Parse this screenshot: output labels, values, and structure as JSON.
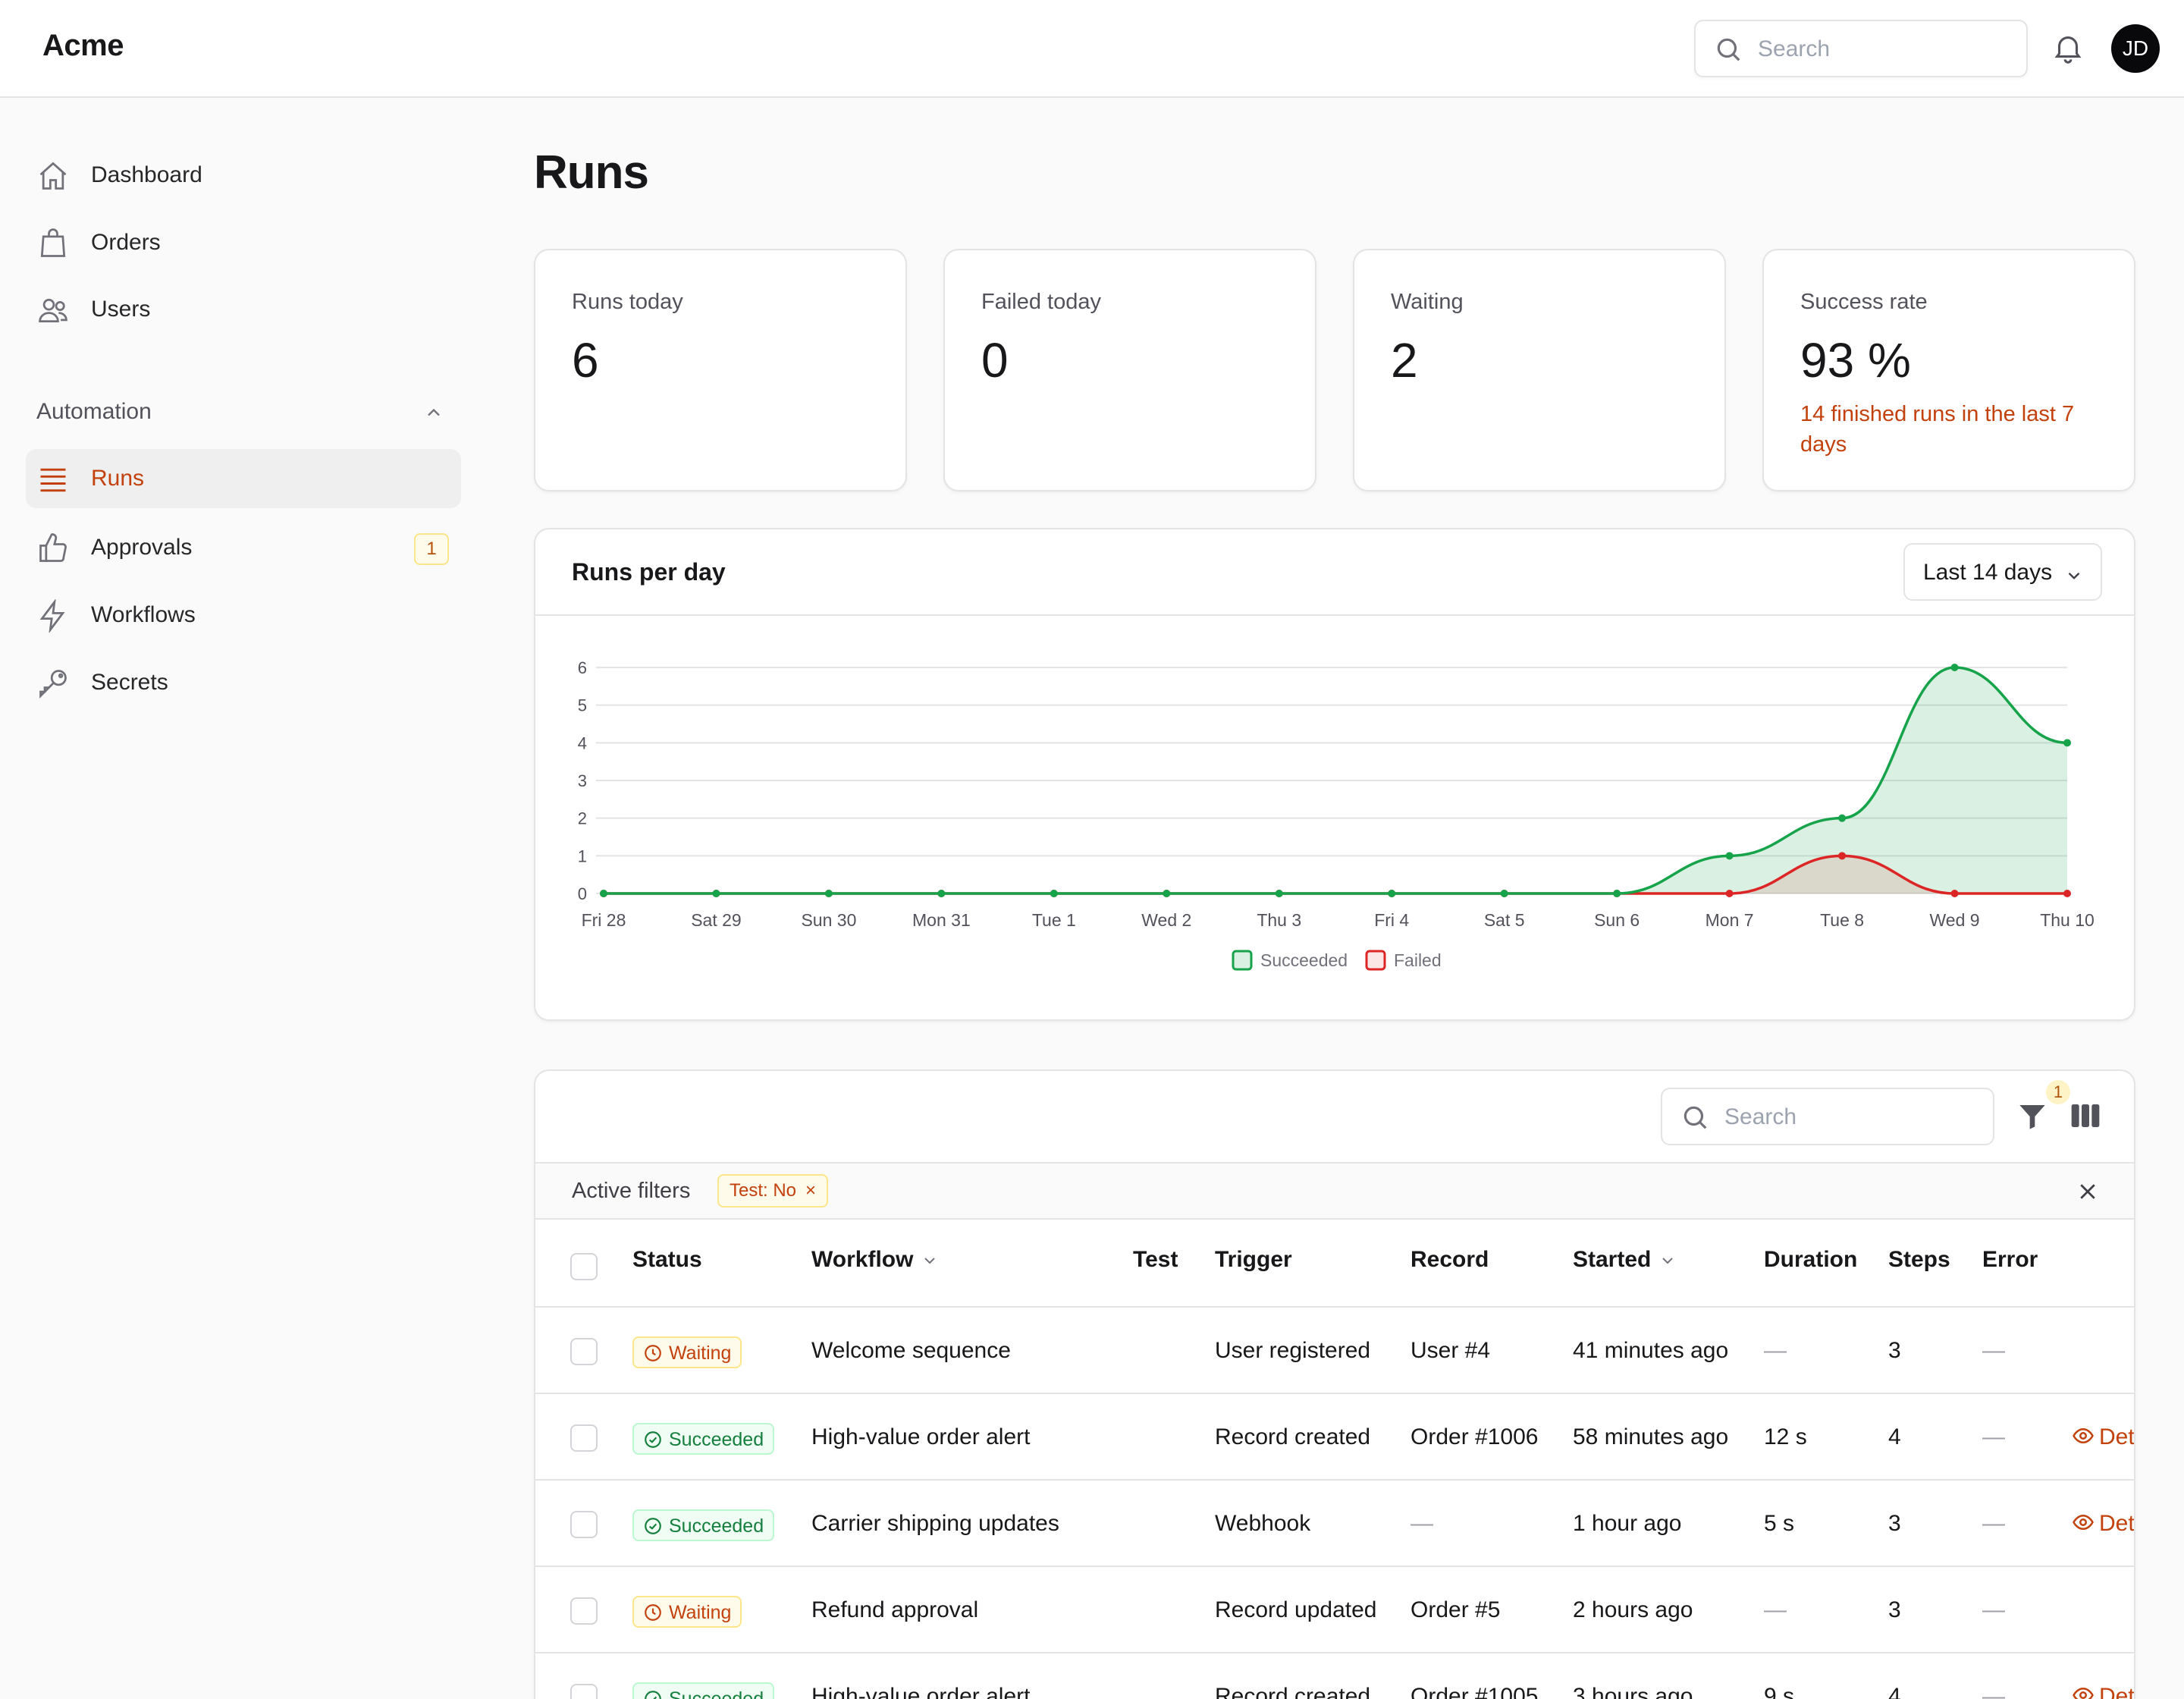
{
  "app": {
    "brand": "Acme",
    "search_placeholder": "Search",
    "avatar_initials": "JD"
  },
  "sidebar": {
    "items": [
      {
        "label": "Dashboard",
        "icon": "home-icon"
      },
      {
        "label": "Orders",
        "icon": "shopping-bag-icon"
      },
      {
        "label": "Users",
        "icon": "users-icon"
      }
    ],
    "section": "Automation",
    "automation_items": [
      {
        "label": "Runs",
        "icon": "list-icon",
        "active": true
      },
      {
        "label": "Approvals",
        "icon": "thumbs-up-icon",
        "badge": "1"
      },
      {
        "label": "Workflows",
        "icon": "lightning-icon"
      },
      {
        "label": "Secrets",
        "icon": "key-icon"
      }
    ]
  },
  "page": {
    "title": "Runs"
  },
  "stats": [
    {
      "label": "Runs today",
      "value": "6"
    },
    {
      "label": "Failed today",
      "value": "0"
    },
    {
      "label": "Waiting",
      "value": "2"
    },
    {
      "label": "Success rate",
      "value": "93 %",
      "note": "14 finished runs in the last 7 days"
    }
  ],
  "chart_panel": {
    "title": "Runs per day",
    "range": "Last 14 days"
  },
  "chart_data": {
    "type": "area",
    "categories": [
      "Fri 28",
      "Sat 29",
      "Sun 30",
      "Mon 31",
      "Tue 1",
      "Wed 2",
      "Thu 3",
      "Fri 4",
      "Sat 5",
      "Sun 6",
      "Mon 7",
      "Tue 8",
      "Wed 9",
      "Thu 10"
    ],
    "series": [
      {
        "name": "Succeeded",
        "values": [
          0,
          0,
          0,
          0,
          0,
          0,
          0,
          0,
          0,
          0,
          1,
          2,
          6,
          4
        ]
      },
      {
        "name": "Failed",
        "values": [
          0,
          0,
          0,
          0,
          0,
          0,
          0,
          0,
          0,
          0,
          0,
          1,
          0,
          0
        ]
      }
    ],
    "ylim": [
      0,
      6
    ],
    "yticks": [
      0,
      1,
      2,
      3,
      4,
      5,
      6
    ],
    "grid": true,
    "legend": "bottom",
    "colors": {
      "succeeded": "#16a34a",
      "failed": "#dc2626"
    }
  },
  "table": {
    "search_placeholder": "Search",
    "filter_count": "1",
    "active_filters_label": "Active filters",
    "filter_chip": "Test: No",
    "columns": [
      "Status",
      "Workflow",
      "Test",
      "Trigger",
      "Record",
      "Started",
      "Duration",
      "Steps",
      "Error"
    ],
    "details_label": "Details",
    "rows": [
      {
        "status": "Waiting",
        "workflow": "Welcome sequence",
        "trigger": "User registered",
        "record": "User #4",
        "started": "41 minutes ago",
        "duration": "—",
        "steps": "3",
        "error": "—"
      },
      {
        "status": "Succeeded",
        "workflow": "High-value order alert",
        "trigger": "Record created",
        "record": "Order #1006",
        "started": "58 minutes ago",
        "duration": "12 s",
        "steps": "4",
        "error": "—"
      },
      {
        "status": "Succeeded",
        "workflow": "Carrier shipping updates",
        "trigger": "Webhook",
        "record": "—",
        "started": "1 hour ago",
        "duration": "5 s",
        "steps": "3",
        "error": "—"
      },
      {
        "status": "Waiting",
        "workflow": "Refund approval",
        "trigger": "Record updated",
        "record": "Order #5",
        "started": "2 hours ago",
        "duration": "—",
        "steps": "3",
        "error": "—"
      },
      {
        "status": "Succeeded",
        "workflow": "High-value order alert",
        "trigger": "Record created",
        "record": "Order #1005",
        "started": "3 hours ago",
        "duration": "9 s",
        "steps": "4",
        "error": "—"
      }
    ]
  }
}
